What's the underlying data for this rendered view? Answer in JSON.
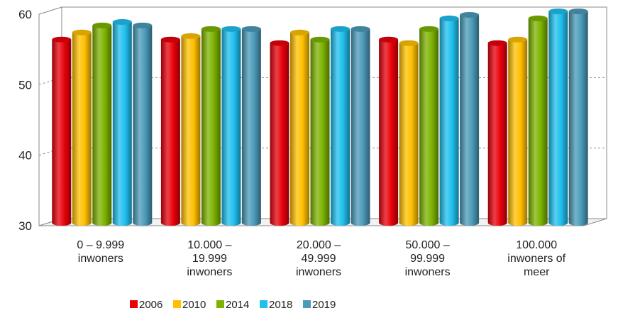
{
  "chart_data": {
    "type": "bar",
    "style": "3d-cylinder",
    "ylim": [
      30,
      60
    ],
    "yticks": [
      30,
      40,
      50,
      60
    ],
    "grid": true,
    "legend_position": "bottom",
    "categories": [
      [
        "0 – 9.999",
        "inwoners"
      ],
      [
        "10.000 –",
        "19.999",
        "inwoners"
      ],
      [
        "20.000 –",
        "49.999",
        "inwoners"
      ],
      [
        "50.000 –",
        "99.999",
        "inwoners"
      ],
      [
        "100.000",
        "inwoners of",
        "meer"
      ]
    ],
    "series": [
      {
        "name": "2006",
        "color": "#e8000b",
        "values": [
          56.0,
          56.0,
          55.5,
          56.0,
          55.5
        ]
      },
      {
        "name": "2010",
        "color": "#ffc000",
        "values": [
          57.0,
          56.5,
          57.0,
          55.5,
          56.0
        ]
      },
      {
        "name": "2014",
        "color": "#7cb300",
        "values": [
          58.0,
          57.5,
          56.0,
          57.5,
          59.0
        ]
      },
      {
        "name": "2018",
        "color": "#1fbfee",
        "values": [
          58.5,
          57.5,
          57.5,
          59.0,
          60.0
        ]
      },
      {
        "name": "2019",
        "color": "#4a9ab8",
        "values": [
          58.0,
          57.5,
          57.5,
          59.5,
          60.0
        ]
      }
    ]
  }
}
